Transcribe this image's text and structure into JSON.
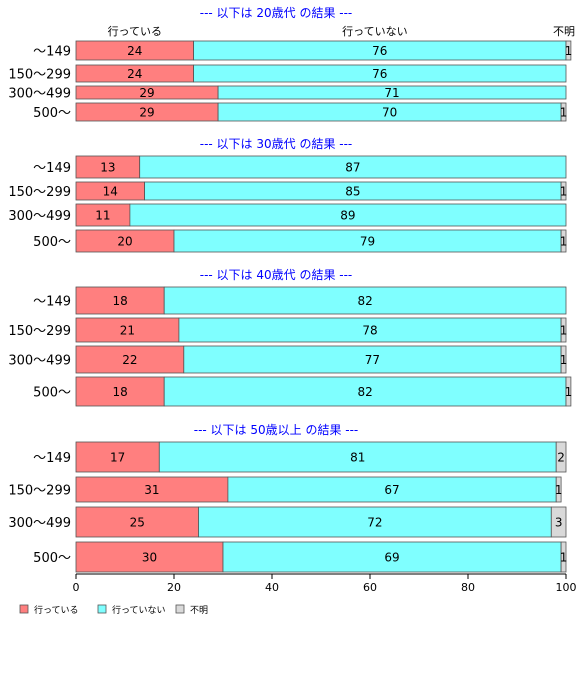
{
  "chart_data": {
    "type": "bar",
    "orientation": "horizontal",
    "stacked": true,
    "column_headers": [
      "行っている",
      "行っていない",
      "不明"
    ],
    "xlim": [
      0,
      100
    ],
    "xticks": [
      0,
      20,
      40,
      60,
      80,
      100
    ],
    "series": [
      {
        "name": "行っている",
        "color": "#ff7f7f"
      },
      {
        "name": "行っていない",
        "color": "#7fffff"
      },
      {
        "name": "不明",
        "color": "#d9d9d9"
      }
    ],
    "groups": [
      {
        "title": "--- 以下は 20歳代 の結果 ---",
        "rows": [
          {
            "label": "～149",
            "values": [
              24,
              76,
              1
            ]
          },
          {
            "label": "150～299",
            "values": [
              24,
              76,
              0
            ]
          },
          {
            "label": "300～499",
            "values": [
              29,
              71,
              0
            ]
          },
          {
            "label": "500～",
            "values": [
              29,
              70,
              1
            ]
          }
        ]
      },
      {
        "title": "--- 以下は 30歳代 の結果 ---",
        "rows": [
          {
            "label": "～149",
            "values": [
              13,
              87,
              0
            ]
          },
          {
            "label": "150～299",
            "values": [
              14,
              85,
              1
            ]
          },
          {
            "label": "300～499",
            "values": [
              11,
              89,
              0
            ]
          },
          {
            "label": "500～",
            "values": [
              20,
              79,
              1
            ]
          }
        ]
      },
      {
        "title": "--- 以下は 40歳代 の結果 ---",
        "rows": [
          {
            "label": "～149",
            "values": [
              18,
              82,
              0
            ]
          },
          {
            "label": "150～299",
            "values": [
              21,
              78,
              1
            ]
          },
          {
            "label": "300～499",
            "values": [
              22,
              77,
              1
            ]
          },
          {
            "label": "500～",
            "values": [
              18,
              82,
              1
            ]
          }
        ]
      },
      {
        "title": "--- 以下は 50歳以上 の結果 ---",
        "rows": [
          {
            "label": "～149",
            "values": [
              17,
              81,
              2
            ]
          },
          {
            "label": "150～299",
            "values": [
              31,
              67,
              1
            ]
          },
          {
            "label": "300～499",
            "values": [
              25,
              72,
              3
            ]
          },
          {
            "label": "500～",
            "values": [
              30,
              69,
              1
            ]
          }
        ]
      }
    ],
    "legend": {
      "position": "bottom-left"
    }
  }
}
